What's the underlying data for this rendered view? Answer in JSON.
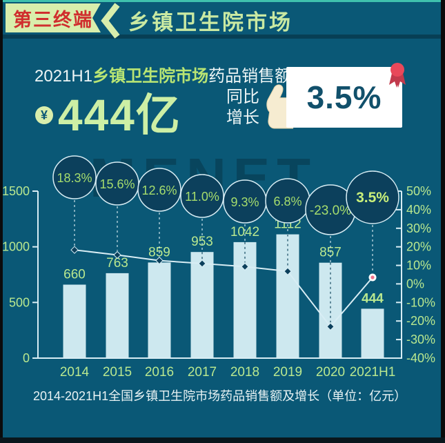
{
  "header": {
    "badge": "第三终端",
    "title": "乡镇卫生院市场"
  },
  "headline": {
    "prefix": "2021H1",
    "highlight": "乡镇卫生院市场",
    "suffix": "药品销售额达",
    "currency_symbol": "¥",
    "amount": "444亿",
    "growth_label_line1": "同比",
    "growth_label_line2": "增长",
    "growth_value": "3.5%"
  },
  "watermark": "MENET",
  "caption": "2014-2021H1全国乡镇卫生院市场药品销售额及增长（单位：亿元）",
  "colors": {
    "background": "#0a5876",
    "bar": "#cde8ef",
    "label": "#b9e88f",
    "axis": "#d8edf4",
    "line": "#d8edf4",
    "bubble_fill": "#0c405c",
    "bubble_text": "#a6dd6d",
    "highlight": "#c9ef7a",
    "pink": "#f2738c",
    "accent_green": "#d9eeac",
    "badge_text_red": "#d02e2e",
    "card_text": "#11506b",
    "medal_red": "#e8485a",
    "hand": "#f6ecd1",
    "top_line": "#3fc1ad"
  },
  "chart_data": {
    "type": "bar",
    "title": "2014-2021H1全国乡镇卫生院市场药品销售额及增长（单位：亿元）",
    "categories": [
      "2014",
      "2015",
      "2016",
      "2017",
      "2018",
      "2019",
      "2020",
      "2021H1"
    ],
    "series": [
      {
        "name": "药品销售额（亿元）",
        "type": "bar",
        "values": [
          660,
          763,
          859,
          953,
          1042,
          1112,
          857,
          444
        ]
      },
      {
        "name": "同比增长（%）",
        "type": "line",
        "values": [
          18.3,
          15.6,
          12.6,
          11.0,
          9.3,
          6.8,
          -23.0,
          3.5
        ]
      }
    ],
    "growth_labels": [
      "18.3%",
      "15.6%",
      "12.6%",
      "11.0%",
      "9.3%",
      "6.8%",
      "-23.0%",
      "3.5%"
    ],
    "left_axis": {
      "min": 0,
      "max": 1500,
      "ticks": [
        0,
        500,
        1000,
        1500
      ]
    },
    "right_axis": {
      "min": -40,
      "max": 50,
      "ticks": [
        50,
        40,
        30,
        20,
        10,
        0,
        -10,
        -20,
        -30,
        -40
      ],
      "suffix": "%"
    },
    "legend": "none",
    "grid": "off"
  }
}
